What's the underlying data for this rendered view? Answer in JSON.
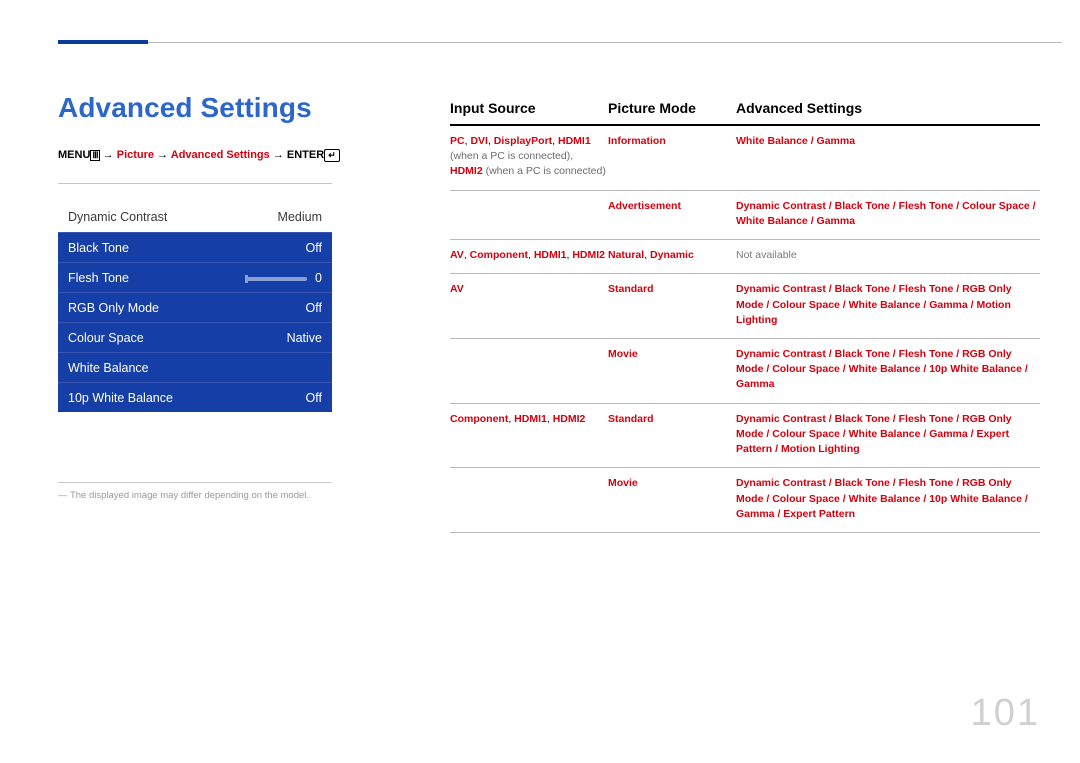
{
  "page_number": "101",
  "section_title": "Advanced Settings",
  "nav": {
    "menu_label": "MENU",
    "arrow": " → ",
    "part1": "Picture",
    "part2": "Advanced Settings",
    "enter_label": "ENTER"
  },
  "menu_panel": {
    "rows": [
      {
        "style": "white",
        "label": "Dynamic Contrast",
        "value": "Medium"
      },
      {
        "style": "blue",
        "label": "Black Tone",
        "value": "Off"
      },
      {
        "style": "blue",
        "label": "Flesh Tone",
        "value": "0",
        "slider": true
      },
      {
        "style": "blue",
        "label": "RGB Only Mode",
        "value": "Off"
      },
      {
        "style": "blue",
        "label": "Colour Space",
        "value": "Native"
      },
      {
        "style": "blue",
        "label": "White Balance",
        "value": ""
      },
      {
        "style": "blue",
        "label": "10p White Balance",
        "value": "Off"
      }
    ],
    "blue_bg": "#153ea6",
    "blue_divider": "#3a56b5"
  },
  "footnote": "―  The displayed image may differ depending on the model.",
  "table": {
    "headers": {
      "c1": "Input Source",
      "c2": "Picture Mode",
      "c3": "Advanced Settings"
    },
    "rows": [
      {
        "c1_hl": "PC",
        "c1_sep1": ", ",
        "c1_hl2": "DVI",
        "c1_sep2": ", ",
        "c1_hl3": "DisplayPort",
        "c1_sep3": ", ",
        "c1_hl4": "HDMI1",
        "c1_mut1": "(when a PC is connected),",
        "c1_hl5": "HDMI2",
        "c1_mut2": " (when a PC is connected)",
        "c2a": "Information",
        "c3a": "White Balance / Gamma",
        "c2b": "Advertisement",
        "c3b": "Dynamic Contrast / Black Tone / Flesh Tone / Colour Space / White Balance / Gamma"
      },
      {
        "c1_hl": "AV",
        "c1_sep1": ", ",
        "c1_hl2": "Component",
        "c1_sep2": ", ",
        "c1_hl3": "HDMI1",
        "c1_sep3": ", ",
        "c1_hl4": "HDMI2",
        "c2a": "Natural",
        "c2a_sep": ", ",
        "c2a2": "Dynamic",
        "c3a_na": "Not available"
      },
      {
        "c1_hl": "AV",
        "c2a": "Standard",
        "c3a": "Dynamic Contrast / Black Tone / Flesh Tone / RGB Only Mode / Colour Space / White Balance / Gamma / Motion Lighting",
        "c2b": "Movie",
        "c3b": "Dynamic Contrast / Black Tone / Flesh Tone / RGB Only Mode / Colour Space / White Balance / 10p White Balance / Gamma"
      },
      {
        "c1_hl": "Component",
        "c1_sep1": ", ",
        "c1_hl2": "HDMI1",
        "c1_sep2": ", ",
        "c1_hl3": "HDMI2",
        "c2a": "Standard",
        "c3a": "Dynamic Contrast / Black Tone / Flesh Tone / RGB Only Mode / Colour Space / White Balance / Gamma / Expert Pattern / Motion Lighting",
        "c2b": "Movie",
        "c3b": "Dynamic Contrast / Black Tone / Flesh Tone / RGB Only Mode / Colour Space / White Balance / 10p White Balance / Gamma / Expert Pattern"
      }
    ]
  },
  "colors": {
    "heading_blue": "#2d66c9",
    "accent_red": "#d6000e",
    "page_num_gray": "#d0d0d0"
  }
}
